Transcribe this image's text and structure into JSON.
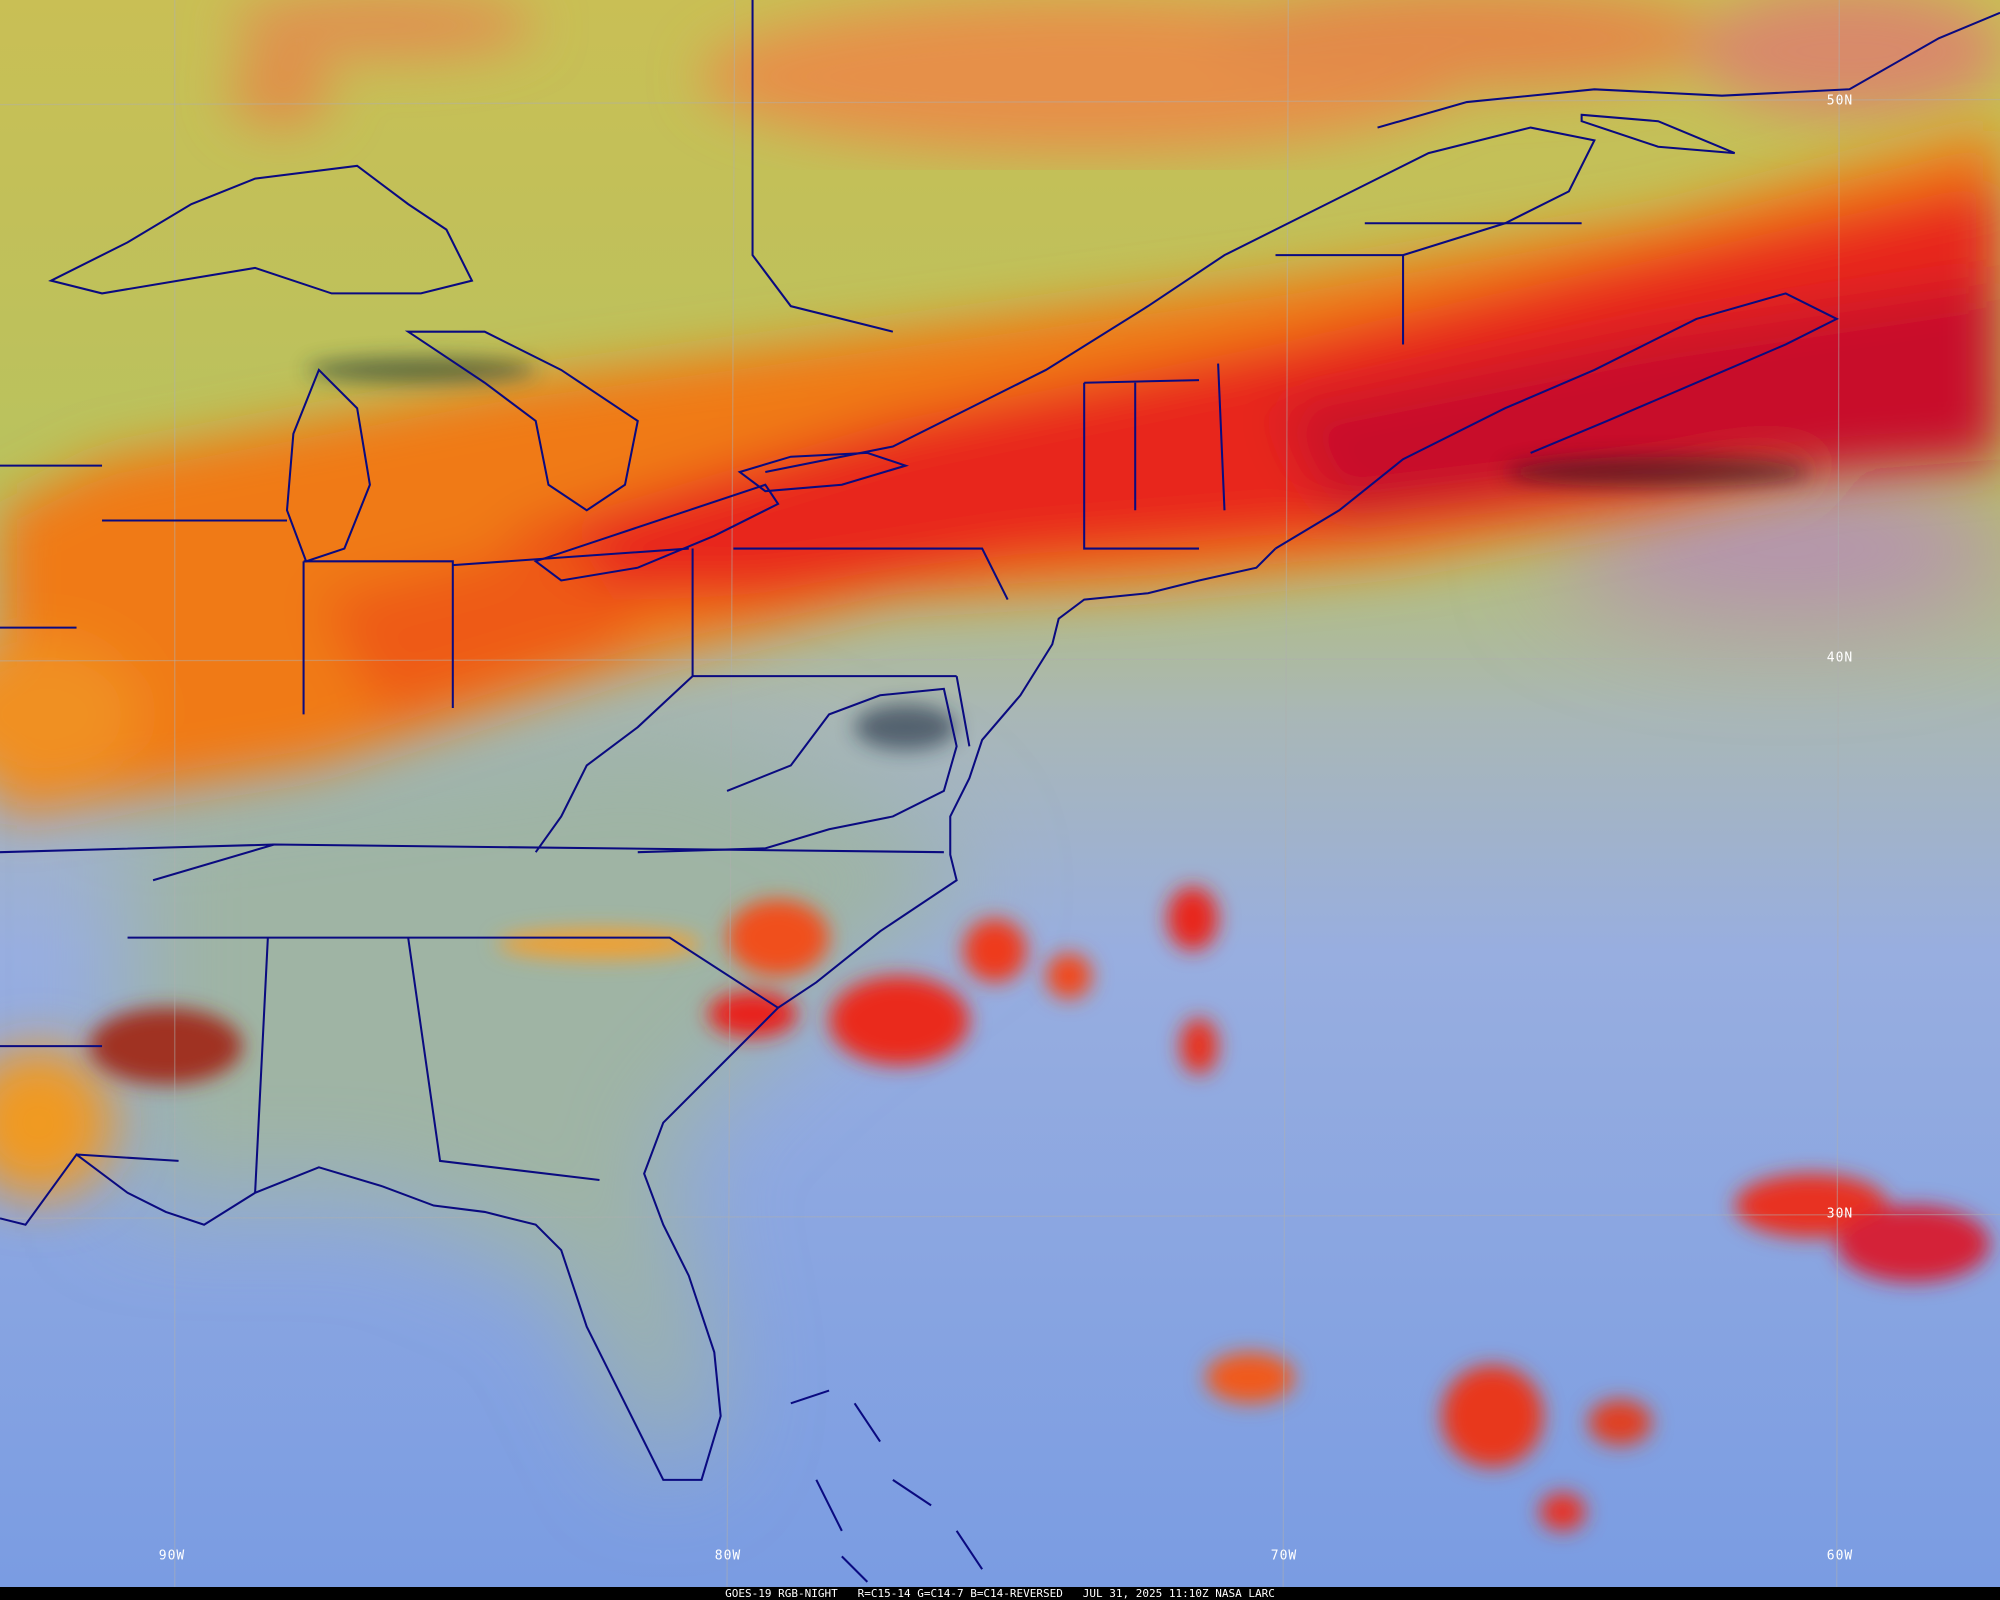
{
  "caption": "GOES-19 RGB-NIGHT   R=C15-14 G=C14-7 B=C14-REVERSED   JUL 31, 2025 11:10Z NASA LARC",
  "grid_labels": {
    "lat": [
      "50N",
      "40N",
      "30N"
    ],
    "lon": [
      "90W",
      "80W",
      "70W",
      "60W"
    ]
  },
  "colors": {
    "ocean_clear": "#7f9fe0",
    "land_clear": "#9fb4a4",
    "north_low_cloud": "#c7c056",
    "high_cloud_red": "#e02020",
    "mid_cloud_orange": "#f07a18",
    "boundaries": "#0a0a80"
  }
}
